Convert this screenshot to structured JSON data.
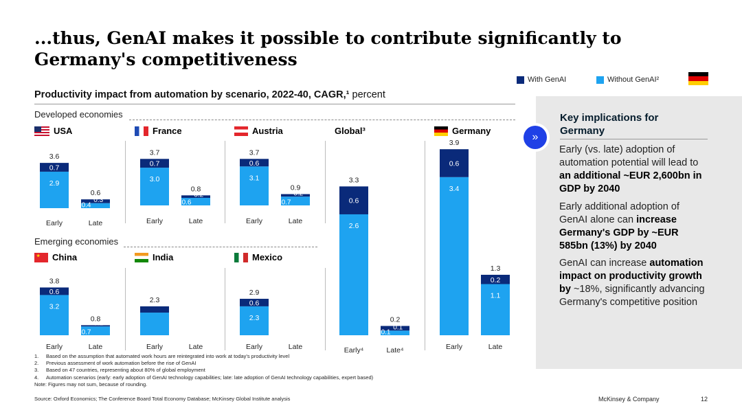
{
  "title": "...thus, GenAI makes it possible to contribute significantly to Germany's competitiveness",
  "legend": {
    "with": "With GenAI",
    "without": "Without GenAI²"
  },
  "colors": {
    "with": "#0a2a7a",
    "without": "#1ea3f0",
    "accent": "#1f40e6"
  },
  "subtitle": {
    "bold": "Productivity impact from automation by scenario, 2022-40, CAGR,¹",
    "regular": " percent"
  },
  "sections": {
    "developed": "Developed economies",
    "emerging": "Emerging economies"
  },
  "country_labels": {
    "usa": "USA",
    "france": "France",
    "austria": "Austria",
    "global": "Global³",
    "germany": "Germany",
    "china": "China",
    "india": "India",
    "mexico": "Mexico"
  },
  "chart_data": [
    {
      "type": "bar",
      "title": "USA",
      "categories": [
        "Early",
        "Late"
      ],
      "series": [
        {
          "name": "Without GenAI²",
          "values": [
            2.9,
            0.4
          ]
        },
        {
          "name": "With GenAI",
          "values": [
            0.7,
            0.3
          ]
        }
      ],
      "totals": [
        "3.6",
        "0.6"
      ],
      "ylim": [
        0,
        4.0
      ]
    },
    {
      "type": "bar",
      "title": "France",
      "categories": [
        "Early",
        "Late"
      ],
      "series": [
        {
          "name": "Without GenAI²",
          "values": [
            3.0,
            0.6
          ]
        },
        {
          "name": "With GenAI",
          "values": [
            0.7,
            0.2
          ]
        }
      ],
      "totals": [
        "3.7",
        "0.8"
      ],
      "ylim": [
        0,
        4.0
      ]
    },
    {
      "type": "bar",
      "title": "Austria",
      "categories": [
        "Early",
        "Late"
      ],
      "series": [
        {
          "name": "Without GenAI²",
          "values": [
            3.1,
            0.7
          ]
        },
        {
          "name": "With GenAI",
          "values": [
            0.6,
            0.2
          ]
        }
      ],
      "totals": [
        "3.7",
        "0.9"
      ],
      "ylim": [
        0,
        4.0
      ]
    },
    {
      "type": "bar",
      "title": "China",
      "categories": [
        "Early",
        "Late"
      ],
      "series": [
        {
          "name": "Without GenAI²",
          "values": [
            3.2,
            0.7
          ]
        },
        {
          "name": "With GenAI",
          "values": [
            0.6,
            0.1
          ]
        }
      ],
      "totals": [
        "3.8",
        "0.8"
      ],
      "ylim": [
        0,
        4.0
      ]
    },
    {
      "type": "bar",
      "title": "India",
      "categories": [
        "Early",
        "Late"
      ],
      "series": [
        {
          "name": "Without GenAI²",
          "values": [
            1.8,
            null
          ]
        },
        {
          "name": "With GenAI",
          "values": [
            0.5,
            null
          ]
        }
      ],
      "totals": [
        "2.3",
        ""
      ],
      "ylim": [
        0,
        4.0
      ]
    },
    {
      "type": "bar",
      "title": "Mexico",
      "categories": [
        "Early",
        "Late"
      ],
      "series": [
        {
          "name": "Without GenAI²",
          "values": [
            2.3,
            null
          ]
        },
        {
          "name": "With GenAI",
          "values": [
            0.6,
            null
          ]
        }
      ],
      "totals": [
        "2.9",
        ""
      ],
      "ylim": [
        0,
        4.0
      ]
    },
    {
      "type": "bar",
      "title": "Global³",
      "categories": [
        "Early⁴",
        "Late⁴"
      ],
      "series": [
        {
          "name": "Without GenAI²",
          "values": [
            2.6,
            0.1
          ]
        },
        {
          "name": "With GenAI",
          "values": [
            0.6,
            0.1
          ]
        }
      ],
      "totals": [
        "3.3",
        "0.2"
      ],
      "ylim": [
        0,
        4.0
      ]
    },
    {
      "type": "bar",
      "title": "Germany",
      "categories": [
        "Early",
        "Late"
      ],
      "series": [
        {
          "name": "Without GenAI²",
          "values": [
            3.4,
            1.1
          ]
        },
        {
          "name": "With GenAI",
          "values": [
            0.6,
            0.2
          ]
        }
      ],
      "totals": [
        "3.9",
        "1.3"
      ],
      "ylim": [
        0,
        4.0
      ]
    }
  ],
  "implications": {
    "title": "Key implications for Germany",
    "items": [
      {
        "pre": "Early (vs. late) adoption of automation potential will lead to ",
        "bold": "an additional ~EUR 2,600bn in GDP by 2040",
        "post": ""
      },
      {
        "pre": "Early additional adoption of GenAI alone can ",
        "bold": "increase Germany's GDP by ~EUR 585bn (13%) by 2040",
        "post": ""
      },
      {
        "pre": "GenAI can increase ",
        "bold": "automation impact on productivity growth by",
        "post": " ~18%, significantly advancing Germany's competitive position"
      }
    ]
  },
  "notes": [
    {
      "n": "1.",
      "t": "Based on the assumption that automated work hours are reintegrated into work at today's productivity level"
    },
    {
      "n": "2.",
      "t": "Previous assessment of work automation before the rise of GenAI"
    },
    {
      "n": "3.",
      "t": "Based on 47 countries, representing about 80% of global employment"
    },
    {
      "n": "4.",
      "t": "Automation scenarios (early: early adoption of GenAI technology capabilities; late: late adoption of GenAI technology capabilities, expert based)"
    },
    {
      "n": "",
      "t": "Note: Figures may not sum, because of rounding."
    }
  ],
  "source": "Source: Oxford Economics; The Conference Board Total Economy Database; McKinsey Global Institute analysis",
  "footer": {
    "brand": "McKinsey & Company",
    "page": "12"
  }
}
